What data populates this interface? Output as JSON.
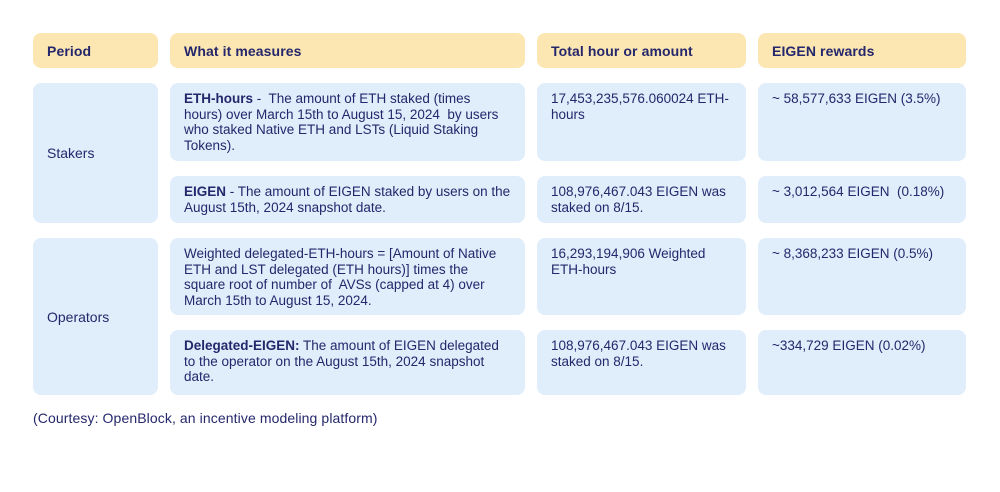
{
  "table": {
    "columns": [
      "Period",
      "What it measures",
      "Total hour or amount",
      "EIGEN rewards"
    ],
    "groups": [
      {
        "period": "Stakers",
        "rows": [
          {
            "measure_lead": "ETH-hours",
            "measure_rest": " -  The amount of ETH staked (times hours) over March 15th to August 15, 2024  by users who staked Native ETH and LSTs (Liquid Staking Tokens).",
            "total": "17,453,235,576.060024 ETH-hours",
            "reward": "~ 58,577,633 EIGEN (3.5%)"
          },
          {
            "measure_lead": "EIGEN",
            "measure_rest": " - The amount of EIGEN staked by users on the August 15th, 2024 snapshot date.",
            "total": "108,976,467.043 EIGEN was staked on 8/15.",
            "reward": "~ 3,012,564 EIGEN  (0.18%)"
          }
        ]
      },
      {
        "period": "Operators",
        "rows": [
          {
            "measure_lead": "",
            "measure_rest": "Weighted delegated-ETH-hours = [Amount of Native ETH and LST delegated (ETH hours)] times the square root of number of  AVSs (capped at 4) over March 15th to August 15, 2024.",
            "total": "16,293,194,906 Weighted ETH-hours",
            "reward": "~ 8,368,233 EIGEN (0.5%)"
          },
          {
            "measure_lead": "Delegated-EIGEN:",
            "measure_rest": " The amount of EIGEN delegated to the operator on the August 15th, 2024 snapshot date.",
            "total": "108,976,467.043 EIGEN was staked on 8/15.",
            "reward": "~334,729 EIGEN (0.02%)"
          }
        ]
      }
    ]
  },
  "footer": {
    "caption": "(Courtesy: OpenBlock, an incentive modeling platform)"
  },
  "colors": {
    "header_bg": "#fce6b2",
    "cell_bg": "#e0edfb",
    "text": "#24276b",
    "background": "#ffffff"
  }
}
